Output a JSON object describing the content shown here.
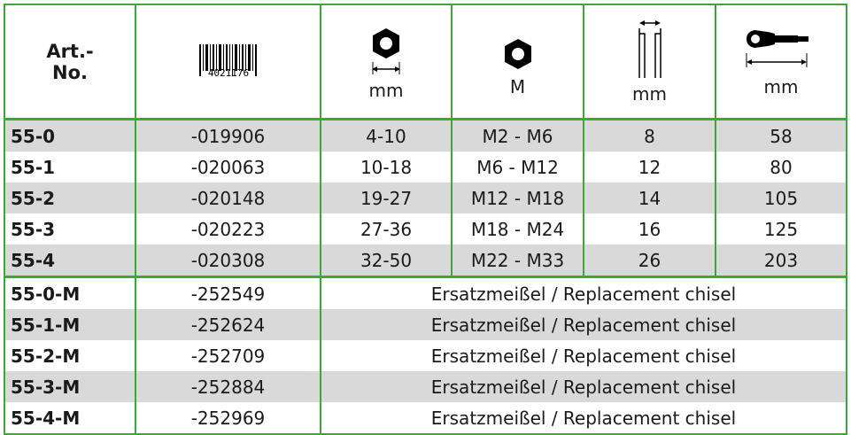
{
  "header": {
    "art_no_lines": [
      "Art.-",
      "No."
    ],
    "barcode": "4021176",
    "units": [
      "mm",
      "M",
      "mm",
      "mm"
    ]
  },
  "rows": [
    [
      "55-0",
      "-019906",
      "4-10",
      "M2 - M6",
      "8",
      "58"
    ],
    [
      "55-1",
      "-020063",
      "10-18",
      "M6 - M12",
      "12",
      "80"
    ],
    [
      "55-2",
      "-020148",
      "19-27",
      "M12 - M18",
      "14",
      "105"
    ],
    [
      "55-3",
      "-020223",
      "27-36",
      "M18 - M24",
      "16",
      "125"
    ],
    [
      "55-4",
      "-020308",
      "32-50",
      "M22 - M33",
      "26",
      "203"
    ]
  ],
  "replacement_rows": [
    [
      "55-0-M",
      "-252549",
      "Ersatzmeißel / Replacement chisel"
    ],
    [
      "55-1-M",
      "-252624",
      "Ersatzmeißel / Replacement chisel"
    ],
    [
      "55-2-M",
      "-252709",
      "Ersatzmeißel / Replacement chisel"
    ],
    [
      "55-3-M",
      "-252884",
      "Ersatzmeißel / Replacement chisel"
    ],
    [
      "55-4-M",
      "-252969",
      "Ersatzmeißel / Replacement chisel"
    ]
  ]
}
